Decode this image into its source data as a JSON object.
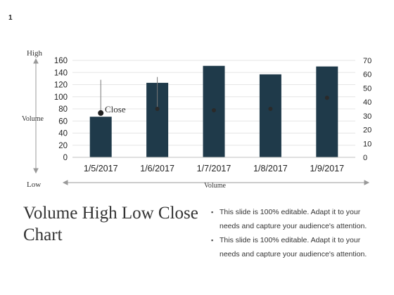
{
  "page_number": "1",
  "slide": {
    "title": "Volume High Low Close Chart",
    "bullets": [
      "This slide is 100% editable. Adapt it to your needs and capture your audience's attention.",
      "This slide is 100% editable. Adapt it to your needs and capture your audience's attention."
    ]
  },
  "annotations": {
    "high_label": "High",
    "low_label": "Low",
    "volume_side_label": "Volume",
    "volume_bottom_label": "Volume",
    "close_label": "Close"
  },
  "chart_data": {
    "type": "bar",
    "categories": [
      "1/5/2017",
      "1/6/2017",
      "1/7/2017",
      "1/8/2017",
      "1/9/2017"
    ],
    "series": [
      {
        "values": [
          67,
          123,
          151,
          137,
          150
        ],
        "color": "#1f3a4a",
        "axis": "left"
      },
      {
        "values": [
          32,
          35,
          34,
          35,
          43
        ],
        "high": [
          56,
          58,
          null,
          null,
          null
        ],
        "low": [
          null,
          null,
          null,
          null,
          null
        ],
        "color": "#1a1a1a",
        "axis": "right",
        "style": "high-low-close"
      }
    ],
    "ylim": [
      0,
      160
    ],
    "y_ticks": [
      "0",
      "20",
      "40",
      "60",
      "80",
      "100",
      "120",
      "140",
      "160"
    ],
    "y2lim": [
      0,
      70
    ],
    "y2_ticks": [
      "0",
      "10",
      "20",
      "30",
      "40",
      "50",
      "60",
      "70"
    ],
    "grid": true,
    "legend": "none"
  }
}
